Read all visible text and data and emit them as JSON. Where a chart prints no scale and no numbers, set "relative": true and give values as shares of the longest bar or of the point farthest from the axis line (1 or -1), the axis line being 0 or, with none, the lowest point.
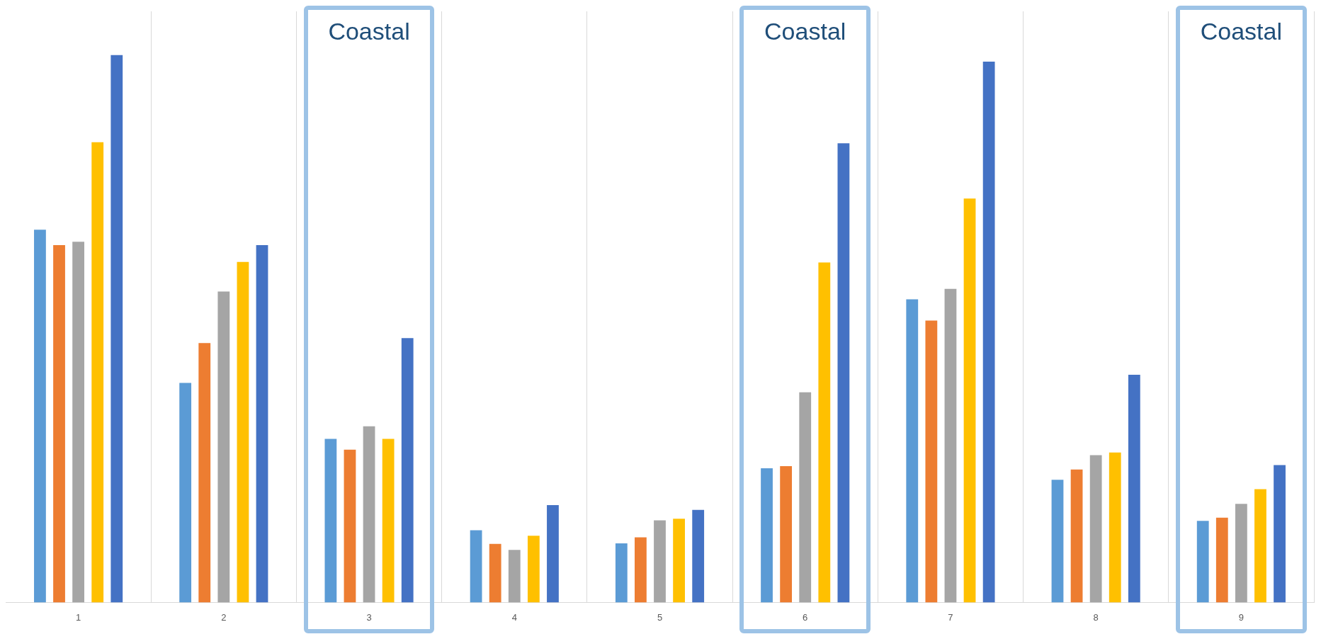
{
  "chart_data": {
    "type": "bar",
    "relative": true,
    "categories": [
      "1",
      "2",
      "3",
      "4",
      "5",
      "6",
      "7",
      "8",
      "9"
    ],
    "series": [
      {
        "color": "#5b9bd5",
        "values": [
          0.681,
          0.401,
          0.299,
          0.132,
          0.108,
          0.245,
          0.554,
          0.224,
          0.149
        ]
      },
      {
        "color": "#ed7d31",
        "values": [
          0.653,
          0.474,
          0.279,
          0.107,
          0.119,
          0.249,
          0.515,
          0.243,
          0.155
        ]
      },
      {
        "color": "#a5a5a5",
        "values": [
          0.659,
          0.568,
          0.322,
          0.096,
          0.15,
          0.384,
          0.573,
          0.269,
          0.18
        ]
      },
      {
        "color": "#ffc000",
        "values": [
          0.841,
          0.622,
          0.299,
          0.122,
          0.153,
          0.621,
          0.738,
          0.274,
          0.207
        ]
      },
      {
        "color": "#4472c4",
        "values": [
          1.0,
          0.653,
          0.483,
          0.178,
          0.169,
          0.839,
          0.988,
          0.416,
          0.251
        ]
      }
    ],
    "grid": "x",
    "legend": false,
    "annotations": [
      "Coastal",
      "Coastal",
      "Coastal"
    ]
  }
}
